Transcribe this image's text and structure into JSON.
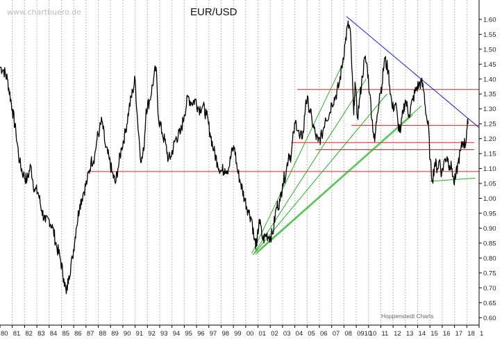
{
  "watermark": "www.chartbuero.de",
  "credit": "Hoppenstedt Charts",
  "colors": {
    "price": "#000000",
    "support_resistance": "#e31b1b",
    "fan_lines": "#22b322",
    "downtrend": "#1a1ad6",
    "grid": "#b8b8b8",
    "axis": "#000000"
  },
  "chart_data": {
    "type": "line",
    "title": "EUR/USD",
    "xlabel": "",
    "ylabel": "",
    "x_tick_labels": [
      "80",
      "81",
      "82",
      "83",
      "84",
      "85",
      "86",
      "87",
      "88",
      "89",
      "90",
      "91",
      "92",
      "93",
      "94",
      "95",
      "96",
      "97",
      "98",
      "99",
      "00",
      "01",
      "02",
      "03",
      "04",
      "05",
      "06",
      "07",
      "08",
      "0910",
      "10",
      "11",
      "12",
      "13",
      "14",
      "15",
      "16",
      "17",
      "18",
      "1"
    ],
    "y_ticks": [
      "0.60",
      "0.65",
      "0.70",
      "0.75",
      "0.80",
      "0.85",
      "0.90",
      "0.95",
      "1.00",
      "1.05",
      "1.10",
      "1.15",
      "1.20",
      "1.25",
      "1.30",
      "1.35",
      "1.40",
      "1.45",
      "1.50",
      "1.55",
      "1.60"
    ],
    "xlim": [
      1980.0,
      2019.0
    ],
    "ylim": [
      0.575,
      1.665
    ],
    "grid": "vertical dashed",
    "y_axis_side": "right",
    "series": [
      {
        "values": [
          [
            1980.0,
            1.44
          ],
          [
            1980.3,
            1.43
          ],
          [
            1980.6,
            1.4
          ],
          [
            1981.0,
            1.3
          ],
          [
            1981.3,
            1.22
          ],
          [
            1981.6,
            1.12
          ],
          [
            1981.9,
            1.08
          ],
          [
            1982.2,
            1.06
          ],
          [
            1982.5,
            1.11
          ],
          [
            1982.8,
            1.03
          ],
          [
            1983.1,
            1.02
          ],
          [
            1983.4,
            0.96
          ],
          [
            1983.7,
            0.92
          ],
          [
            1984.0,
            0.93
          ],
          [
            1984.3,
            0.9
          ],
          [
            1984.6,
            0.84
          ],
          [
            1984.9,
            0.8
          ],
          [
            1985.2,
            0.73
          ],
          [
            1985.4,
            0.68
          ],
          [
            1985.6,
            0.74
          ],
          [
            1985.9,
            0.8
          ],
          [
            1986.2,
            0.9
          ],
          [
            1986.5,
            0.98
          ],
          [
            1986.8,
            1.02
          ],
          [
            1987.1,
            1.06
          ],
          [
            1987.4,
            1.12
          ],
          [
            1987.7,
            1.14
          ],
          [
            1987.9,
            1.2
          ],
          [
            1988.1,
            1.23
          ],
          [
            1988.3,
            1.26
          ],
          [
            1988.6,
            1.17
          ],
          [
            1988.9,
            1.13
          ],
          [
            1989.1,
            1.09
          ],
          [
            1989.4,
            1.05
          ],
          [
            1989.6,
            1.1
          ],
          [
            1989.9,
            1.17
          ],
          [
            1990.2,
            1.22
          ],
          [
            1990.5,
            1.3
          ],
          [
            1990.8,
            1.36
          ],
          [
            1991.0,
            1.4
          ],
          [
            1991.2,
            1.26
          ],
          [
            1991.5,
            1.12
          ],
          [
            1991.7,
            1.16
          ],
          [
            1991.9,
            1.3
          ],
          [
            1992.2,
            1.33
          ],
          [
            1992.5,
            1.4
          ],
          [
            1992.7,
            1.44
          ],
          [
            1992.9,
            1.27
          ],
          [
            1993.2,
            1.22
          ],
          [
            1993.5,
            1.18
          ],
          [
            1993.7,
            1.13
          ],
          [
            1993.9,
            1.14
          ],
          [
            1994.3,
            1.2
          ],
          [
            1994.7,
            1.22
          ],
          [
            1995.0,
            1.28
          ],
          [
            1995.3,
            1.34
          ],
          [
            1995.6,
            1.32
          ],
          [
            1995.9,
            1.33
          ],
          [
            1996.2,
            1.3
          ],
          [
            1996.5,
            1.31
          ],
          [
            1996.8,
            1.28
          ],
          [
            1997.1,
            1.22
          ],
          [
            1997.4,
            1.16
          ],
          [
            1997.7,
            1.12
          ],
          [
            1998.0,
            1.09
          ],
          [
            1998.3,
            1.1
          ],
          [
            1998.6,
            1.1
          ],
          [
            1998.9,
            1.16
          ],
          [
            1999.1,
            1.17
          ],
          [
            1999.3,
            1.1
          ],
          [
            1999.6,
            1.05
          ],
          [
            1999.9,
            1.0
          ],
          [
            2000.2,
            0.96
          ],
          [
            2000.5,
            0.93
          ],
          [
            2000.7,
            0.86
          ],
          [
            2000.9,
            0.84
          ],
          [
            2001.1,
            0.93
          ],
          [
            2001.4,
            0.86
          ],
          [
            2001.7,
            0.88
          ],
          [
            2001.9,
            0.87
          ],
          [
            2002.2,
            0.88
          ],
          [
            2002.5,
            0.97
          ],
          [
            2002.8,
            0.99
          ],
          [
            2003.0,
            1.05
          ],
          [
            2003.3,
            1.09
          ],
          [
            2003.5,
            1.15
          ],
          [
            2003.7,
            1.14
          ],
          [
            2003.9,
            1.22
          ],
          [
            2004.1,
            1.26
          ],
          [
            2004.4,
            1.2
          ],
          [
            2004.7,
            1.22
          ],
          [
            2004.9,
            1.33
          ],
          [
            2005.1,
            1.32
          ],
          [
            2005.4,
            1.26
          ],
          [
            2005.7,
            1.21
          ],
          [
            2005.9,
            1.19
          ],
          [
            2006.2,
            1.21
          ],
          [
            2006.5,
            1.27
          ],
          [
            2006.8,
            1.28
          ],
          [
            2007.0,
            1.32
          ],
          [
            2007.3,
            1.34
          ],
          [
            2007.6,
            1.38
          ],
          [
            2007.9,
            1.46
          ],
          [
            2008.1,
            1.52
          ],
          [
            2008.3,
            1.58
          ],
          [
            2008.5,
            1.57
          ],
          [
            2008.6,
            1.48
          ],
          [
            2008.8,
            1.28
          ],
          [
            2008.9,
            1.39
          ],
          [
            2009.1,
            1.27
          ],
          [
            2009.3,
            1.34
          ],
          [
            2009.5,
            1.41
          ],
          [
            2009.7,
            1.47
          ],
          [
            2009.9,
            1.44
          ],
          [
            2010.1,
            1.35
          ],
          [
            2010.4,
            1.22
          ],
          [
            2010.5,
            1.19
          ],
          [
            2010.7,
            1.28
          ],
          [
            2010.9,
            1.35
          ],
          [
            2011.1,
            1.38
          ],
          [
            2011.3,
            1.47
          ],
          [
            2011.6,
            1.43
          ],
          [
            2011.8,
            1.35
          ],
          [
            2011.95,
            1.3
          ],
          [
            2012.2,
            1.32
          ],
          [
            2012.4,
            1.25
          ],
          [
            2012.6,
            1.22
          ],
          [
            2012.8,
            1.29
          ],
          [
            2013.0,
            1.33
          ],
          [
            2013.3,
            1.28
          ],
          [
            2013.6,
            1.33
          ],
          [
            2013.9,
            1.37
          ],
          [
            2014.1,
            1.38
          ],
          [
            2014.3,
            1.39
          ],
          [
            2014.5,
            1.36
          ],
          [
            2014.7,
            1.28
          ],
          [
            2014.9,
            1.23
          ],
          [
            2015.0,
            1.13
          ],
          [
            2015.2,
            1.06
          ],
          [
            2015.4,
            1.12
          ],
          [
            2015.6,
            1.1
          ],
          [
            2015.8,
            1.13
          ],
          [
            2015.95,
            1.08
          ],
          [
            2016.2,
            1.13
          ],
          [
            2016.4,
            1.14
          ],
          [
            2016.6,
            1.11
          ],
          [
            2016.8,
            1.1
          ],
          [
            2016.95,
            1.05
          ],
          [
            2017.1,
            1.07
          ],
          [
            2017.3,
            1.12
          ],
          [
            2017.5,
            1.16
          ],
          [
            2017.7,
            1.19
          ],
          [
            2017.9,
            1.18
          ],
          [
            2018.0,
            1.23
          ],
          [
            2018.1,
            1.25
          ]
        ]
      }
    ],
    "horizontal_lines": [
      {
        "y": 1.365,
        "x_start": 2004.2,
        "x_end": 2019.0
      },
      {
        "y": 1.245,
        "x_start": 2008.6,
        "x_end": 2019.0
      },
      {
        "y": 1.187,
        "x_start": 2003.7,
        "x_end": 2018.6
      },
      {
        "y": 1.163,
        "x_start": 2005.7,
        "x_end": 2018.6
      },
      {
        "y": 1.09,
        "x_start": 1987.2,
        "x_end": 2019.0
      }
    ],
    "trend_lines": [
      {
        "kind": "downtrend",
        "from": [
          2008.2,
          1.61
        ],
        "to": [
          2019.0,
          1.237
        ]
      },
      {
        "kind": "support",
        "from": [
          2015.0,
          1.057
        ],
        "to": [
          2018.7,
          1.068
        ]
      },
      {
        "kind": "fan",
        "from": [
          2000.5,
          0.815
        ],
        "to": [
          2008.0,
          1.46
        ]
      },
      {
        "kind": "fan",
        "from": [
          2000.6,
          0.81
        ],
        "to": [
          2009.8,
          1.4
        ]
      },
      {
        "kind": "fan",
        "from": [
          2000.7,
          0.815
        ],
        "to": [
          2011.5,
          1.35
        ]
      },
      {
        "kind": "fan",
        "from": [
          2000.8,
          0.812
        ],
        "to": [
          2013.6,
          1.28
        ]
      },
      {
        "kind": "fan",
        "from": [
          2000.9,
          0.82
        ],
        "to": [
          2014.3,
          1.31
        ]
      }
    ]
  }
}
